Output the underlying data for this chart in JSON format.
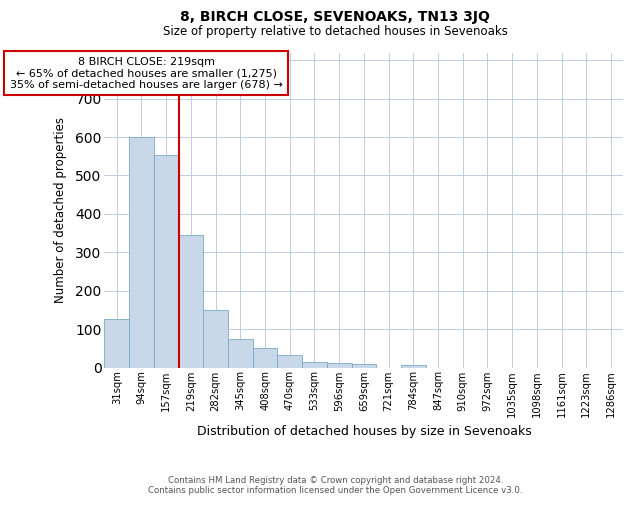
{
  "title": "8, BIRCH CLOSE, SEVENOAKS, TN13 3JQ",
  "subtitle": "Size of property relative to detached houses in Sevenoaks",
  "xlabel": "Distribution of detached houses by size in Sevenoaks",
  "ylabel": "Number of detached properties",
  "categories": [
    "31sqm",
    "94sqm",
    "157sqm",
    "219sqm",
    "282sqm",
    "345sqm",
    "408sqm",
    "470sqm",
    "533sqm",
    "596sqm",
    "659sqm",
    "721sqm",
    "784sqm",
    "847sqm",
    "910sqm",
    "972sqm",
    "1035sqm",
    "1098sqm",
    "1161sqm",
    "1223sqm",
    "1286sqm"
  ],
  "values": [
    127,
    600,
    553,
    345,
    150,
    75,
    52,
    33,
    15,
    12,
    8,
    0,
    7,
    0,
    0,
    0,
    0,
    0,
    0,
    0,
    0
  ],
  "bar_color": "#c8d8e8",
  "bar_edge_color": "#7aaac8",
  "red_line_x": 2.5,
  "red_line_color": "#cc0000",
  "annotation_text": "8 BIRCH CLOSE: 219sqm\n← 65% of detached houses are smaller (1,275)\n35% of semi-detached houses are larger (678) →",
  "annotation_box_color": "#ffffff",
  "annotation_box_edge": "#cc0000",
  "ylim": [
    0,
    820
  ],
  "yticks": [
    0,
    100,
    200,
    300,
    400,
    500,
    600,
    700,
    800
  ],
  "footer_line1": "Contains HM Land Registry data © Crown copyright and database right 2024.",
  "footer_line2": "Contains public sector information licensed under the Open Government Licence v3.0.",
  "bg_color": "#ffffff",
  "grid_color": "#c0cce0"
}
